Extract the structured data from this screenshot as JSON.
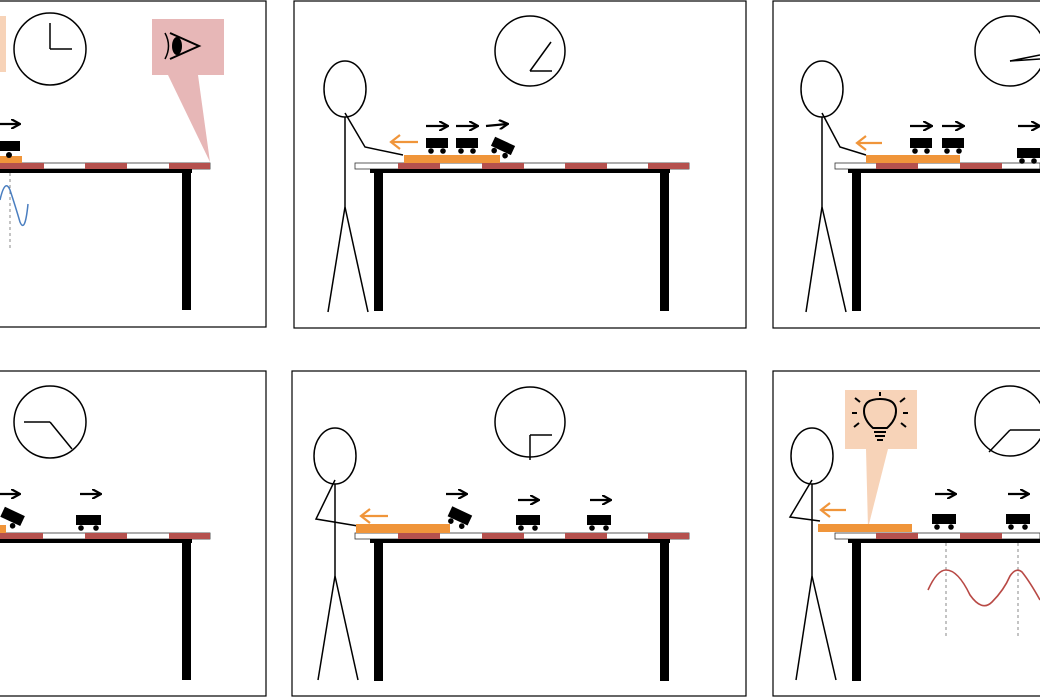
{
  "colors": {
    "frame": "#000000",
    "figure": "#000000",
    "table_leg": "#000000",
    "track_red": "#b5514e",
    "track_white": "#ffffff",
    "track_outline": "#333333",
    "orange": "#f0953a",
    "observer_box": "#e7b7b7",
    "idea_box": "#f7d3b8",
    "wave_blue": "#4a7ec0",
    "wave_red": "#b84945",
    "guide": "#888888"
  },
  "icons": {
    "observer": "eye-icon",
    "insight": "lightbulb-icon",
    "clock": "clock-icon",
    "cart": "cart-icon",
    "arrow": "right-arrow-icon"
  },
  "panels": [
    {
      "id": "panel-1",
      "clock_minute_angle": 0,
      "clock_hour_angle": 270,
      "carts": 1,
      "observer": true,
      "wave": "blue"
    },
    {
      "id": "panel-2",
      "clock_minute_angle": 60,
      "clock_hour_angle": 90,
      "carts": 3,
      "person": true,
      "orange_arrow": true
    },
    {
      "id": "panel-3",
      "clock_minute_angle": 80,
      "clock_hour_angle": 80,
      "carts": 3,
      "person": true,
      "orange_arrow": true
    },
    {
      "id": "panel-4",
      "clock_minute_angle": 120,
      "clock_hour_angle": 270,
      "carts": 2
    },
    {
      "id": "panel-5",
      "clock_minute_angle": 0,
      "clock_hour_angle": 90,
      "carts": 3,
      "person": true,
      "orange_arrow": true
    },
    {
      "id": "panel-6",
      "clock_minute_angle": 45,
      "clock_hour_angle": 90,
      "carts": 2,
      "person": true,
      "orange_arrow": true,
      "insight": true,
      "wave": "red"
    }
  ]
}
